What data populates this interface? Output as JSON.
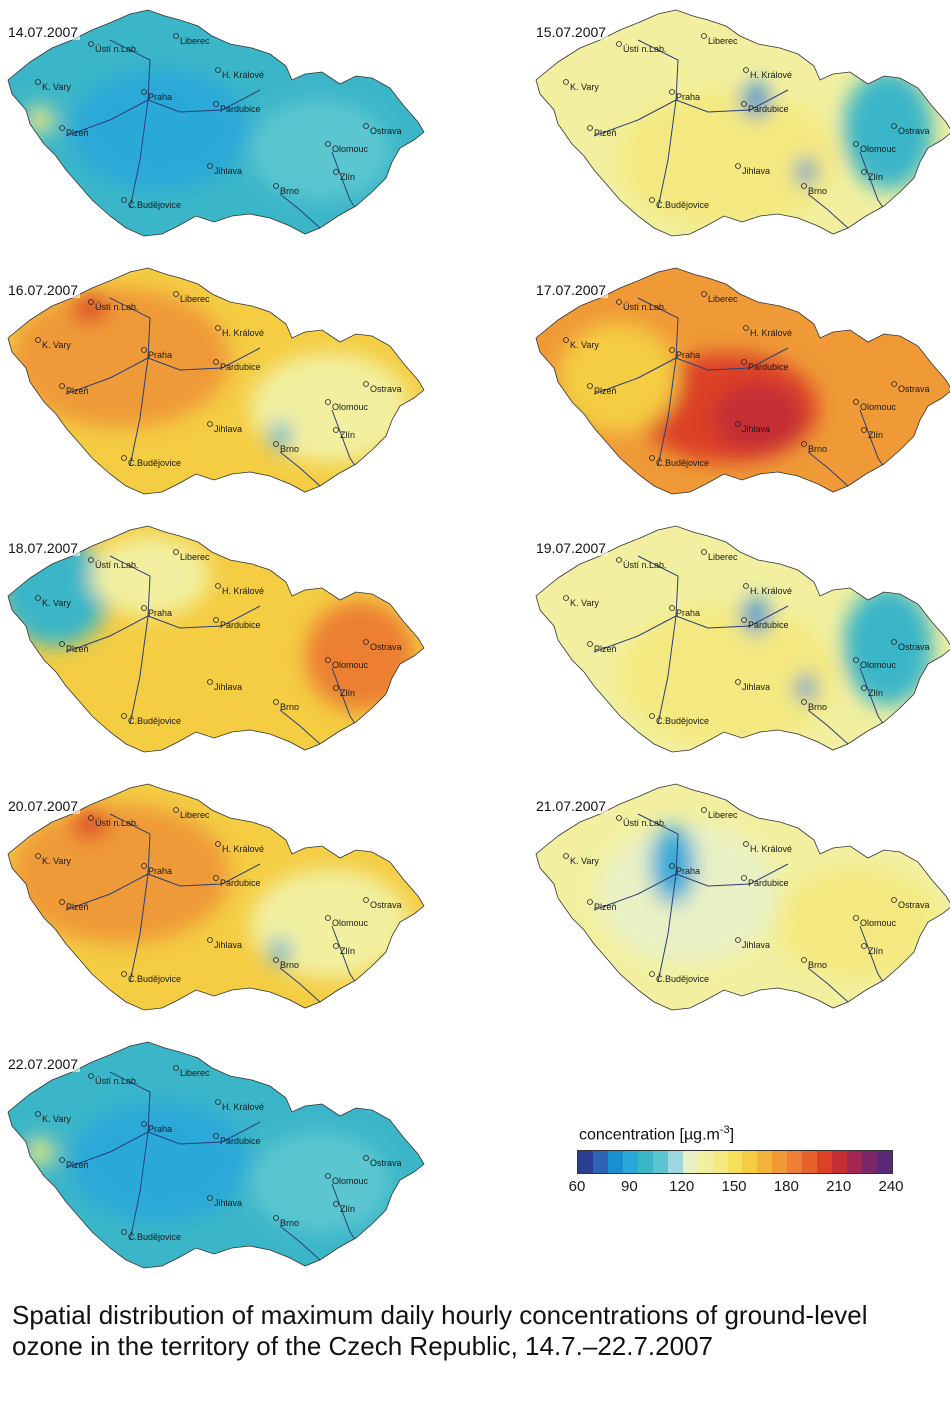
{
  "panels": [
    {
      "date": "14.07.2007",
      "theme": "low"
    },
    {
      "date": "15.07.2007",
      "theme": "mid"
    },
    {
      "date": "16.07.2007",
      "theme": "midhigh"
    },
    {
      "date": "17.07.2007",
      "theme": "high"
    },
    {
      "date": "18.07.2007",
      "theme": "mixed"
    },
    {
      "date": "19.07.2007",
      "theme": "mid"
    },
    {
      "date": "20.07.2007",
      "theme": "midhigh"
    },
    {
      "date": "21.07.2007",
      "theme": "light"
    },
    {
      "date": "22.07.2007",
      "theme": "low"
    }
  ],
  "cities": {
    "usti": "Ústí n.Lab.",
    "liberec": "Liberec",
    "kvary": "K. Vary",
    "praha": "Praha",
    "hkralove": "H. Králové",
    "pardubice": "Pardubice",
    "plzen": "Plzeň",
    "jihlava": "Jihlava",
    "olomouc": "Olomouc",
    "ostrava": "Ostrava",
    "zlin": "Zlín",
    "brno": "Brno",
    "cbudejovice": "Č.Budějovice"
  },
  "legend": {
    "title": "concentration [µg.m",
    "title_sup": "-3",
    "title_close": "]",
    "ticks": [
      "60",
      "90",
      "120",
      "150",
      "180",
      "210",
      "240"
    ],
    "colors": [
      "#2a3f8f",
      "#2f63b5",
      "#1a8fd0",
      "#29a9d9",
      "#3bb6c8",
      "#5cc6d0",
      "#9dd8de",
      "#e9f1c4",
      "#f2f0a0",
      "#f4e980",
      "#f5df5c",
      "#f4cd43",
      "#f2b43b",
      "#ef9a37",
      "#ec7f33",
      "#e6612e",
      "#dc4128",
      "#c52f34",
      "#a3274e",
      "#7a2668",
      "#5a2a7a"
    ]
  },
  "caption": "Spatial distribution of maximum daily hourly concentrations of ground-level ozone in the territory of the Czech Republic, 14.7.–22.7.2007"
}
